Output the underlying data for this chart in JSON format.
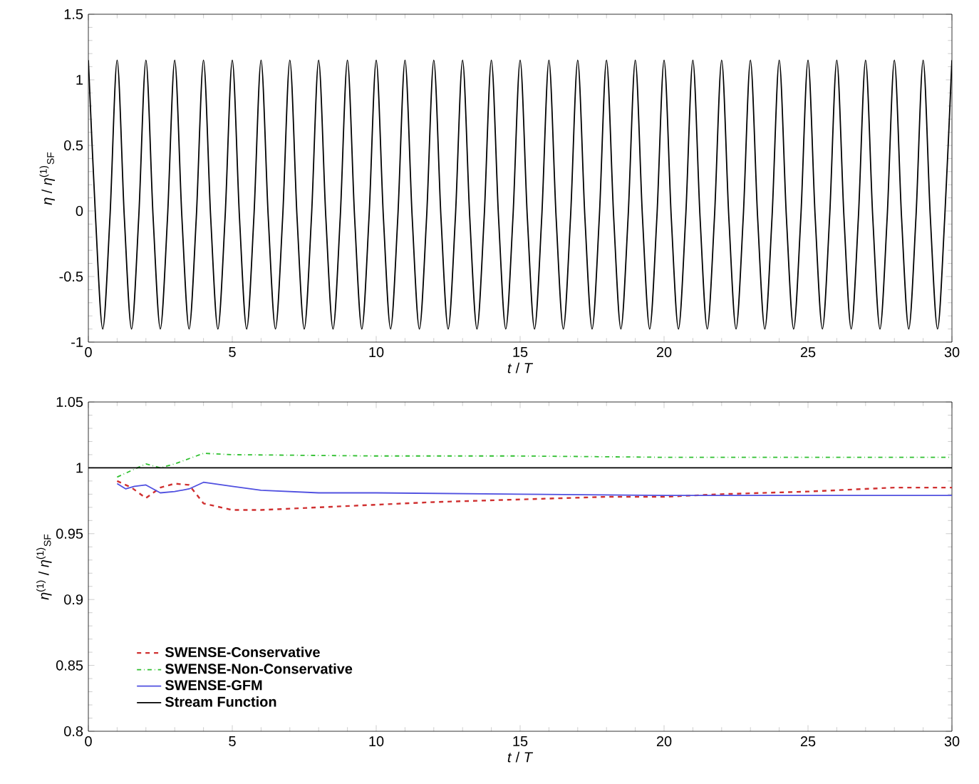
{
  "chart_data": [
    {
      "type": "line",
      "xlabel": "*t* / *T*",
      "ylabel": "*η* / *η*$^{(1)}$$_{SF}$",
      "xlim": [
        0,
        30
      ],
      "ylim": [
        -1,
        1.5
      ],
      "xticks": [
        0,
        5,
        10,
        15,
        20,
        25,
        30
      ],
      "yticks": [
        -1,
        -0.5,
        0,
        0.5,
        1,
        1.5
      ],
      "legend": false,
      "series": [
        {
          "color": "#000000",
          "line_style": "solid",
          "x": [
            0,
            0.25,
            0.5,
            0.75,
            1,
            1.25,
            1.5,
            1.75,
            2,
            2.25,
            2.5,
            2.75,
            3,
            3.25,
            3.5,
            3.75,
            4,
            4.25,
            4.5,
            4.75,
            5,
            5.25,
            5.5,
            5.75,
            6,
            6.25,
            6.5,
            6.75,
            7,
            7.25,
            7.5,
            7.75,
            8,
            8.25,
            8.5,
            8.75,
            9,
            9.25,
            9.5,
            9.75,
            10,
            10.25,
            10.5,
            10.75,
            11,
            11.25,
            11.5,
            11.75,
            12,
            12.25,
            12.5,
            12.75,
            13,
            13.25,
            13.5,
            13.75,
            14,
            14.25,
            14.5,
            14.75,
            15,
            15.25,
            15.5,
            15.75,
            16,
            16.25,
            16.5,
            16.75,
            17,
            17.25,
            17.5,
            17.75,
            18,
            18.25,
            18.5,
            18.75,
            19,
            19.25,
            19.5,
            19.75,
            20,
            20.25,
            20.5,
            20.75,
            21,
            21.25,
            21.5,
            21.75,
            22,
            22.25,
            22.5,
            22.75,
            23,
            23.25,
            23.5,
            23.75,
            24,
            24.25,
            24.5,
            24.75,
            25,
            25.25,
            25.5,
            25.75,
            26,
            26.25,
            26.5,
            26.75,
            27,
            27.25,
            27.5,
            27.75,
            28,
            28.25,
            28.5,
            28.75,
            29,
            29.25,
            29.5,
            29.75,
            30
          ],
          "values": [
            1.15,
            -0.05,
            -0.9,
            -0.05,
            1.15,
            -0.05,
            -0.9,
            -0.05,
            1.15,
            -0.05,
            -0.9,
            -0.05,
            1.15,
            -0.05,
            -0.9,
            -0.05,
            1.15,
            -0.05,
            -0.9,
            -0.05,
            1.15,
            -0.05,
            -0.9,
            -0.05,
            1.15,
            -0.05,
            -0.9,
            -0.05,
            1.15,
            -0.05,
            -0.9,
            -0.05,
            1.15,
            -0.05,
            -0.9,
            -0.05,
            1.15,
            -0.05,
            -0.9,
            -0.05,
            1.15,
            -0.05,
            -0.9,
            -0.05,
            1.15,
            -0.05,
            -0.9,
            -0.05,
            1.15,
            -0.05,
            -0.9,
            -0.05,
            1.15,
            -0.05,
            -0.9,
            -0.05,
            1.15,
            -0.05,
            -0.9,
            -0.05,
            1.15,
            -0.05,
            -0.9,
            -0.05,
            1.15,
            -0.05,
            -0.9,
            -0.05,
            1.15,
            -0.05,
            -0.9,
            -0.05,
            1.15,
            -0.05,
            -0.9,
            -0.05,
            1.15,
            -0.05,
            -0.9,
            -0.05,
            1.15,
            -0.05,
            -0.9,
            -0.05,
            1.15,
            -0.05,
            -0.9,
            -0.05,
            1.15,
            -0.05,
            -0.9,
            -0.05,
            1.15,
            -0.05,
            -0.9,
            -0.05,
            1.15,
            -0.05,
            -0.9,
            -0.05,
            1.15,
            -0.05,
            -0.9,
            -0.05,
            1.15,
            -0.05,
            -0.9,
            -0.05,
            1.15,
            -0.05,
            -0.9,
            -0.05,
            1.15,
            -0.05,
            -0.9,
            -0.05,
            1.15,
            -0.05,
            -0.9,
            -0.05,
            1.15
          ]
        }
      ]
    },
    {
      "type": "line",
      "xlabel": "*t* / *T*",
      "ylabel": "*η*$^{(1)}$ / *η*$^{(1)}$$_{SF}$",
      "xlim": [
        0,
        30
      ],
      "ylim": [
        0.8,
        1.05
      ],
      "xticks": [
        0,
        5,
        10,
        15,
        20,
        25,
        30
      ],
      "yticks": [
        0.8,
        0.85,
        0.9,
        0.95,
        1,
        1.05
      ],
      "legend": "bottom left",
      "series": [
        {
          "name": "SWENSE-Conservative",
          "color": "#d03030",
          "line_style": "dashed",
          "x": [
            1,
            1.5,
            2,
            2.5,
            3,
            3.5,
            4,
            5,
            6,
            8,
            10,
            12,
            15,
            18,
            20,
            22,
            25,
            28,
            30
          ],
          "values": [
            0.99,
            0.985,
            0.977,
            0.985,
            0.988,
            0.987,
            0.973,
            0.968,
            0.968,
            0.97,
            0.972,
            0.974,
            0.976,
            0.978,
            0.978,
            0.98,
            0.982,
            0.985,
            0.985
          ]
        },
        {
          "name": "SWENSE-Non-Conservative",
          "color": "#30c030",
          "line_style": "dashdot",
          "x": [
            1,
            1.5,
            2,
            2.5,
            3,
            4,
            5,
            10,
            15,
            20,
            25,
            30
          ],
          "values": [
            0.993,
            0.998,
            1.003,
            1.0,
            1.003,
            1.011,
            1.01,
            1.009,
            1.009,
            1.008,
            1.008,
            1.008
          ]
        },
        {
          "name": "SWENSE-GFM",
          "color": "#5050e0",
          "line_style": "solid",
          "x": [
            1,
            1.3,
            1.6,
            2,
            2.5,
            3,
            3.5,
            4,
            5,
            6,
            8,
            10,
            15,
            20,
            25,
            30
          ],
          "values": [
            0.988,
            0.984,
            0.986,
            0.987,
            0.981,
            0.982,
            0.984,
            0.989,
            0.986,
            0.983,
            0.981,
            0.981,
            0.98,
            0.979,
            0.979,
            0.979
          ]
        },
        {
          "name": "Stream Function",
          "color": "#000000",
          "line_style": "solid",
          "x": [
            0,
            30
          ],
          "values": [
            1,
            1
          ]
        }
      ]
    }
  ]
}
